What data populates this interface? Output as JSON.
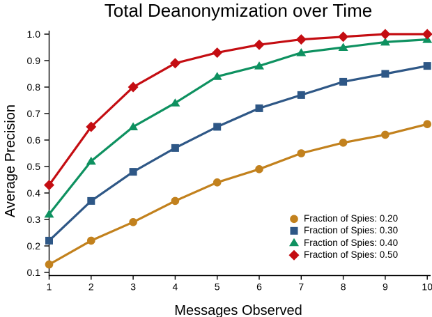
{
  "chart_data": {
    "type": "line",
    "title": "Total Deanonymization over Time",
    "xlabel": "Messages Observed",
    "ylabel": "Average Precision",
    "x": [
      1,
      2,
      3,
      4,
      5,
      6,
      7,
      8,
      9,
      10
    ],
    "x_tick_labels": [
      "1",
      "2",
      "3",
      "4",
      "5",
      "6",
      "7",
      "8",
      "9",
      "10"
    ],
    "y_tick_labels": [
      "0.1",
      "0.2",
      "0.3",
      "0.4",
      "0.5",
      "0.6",
      "0.7",
      "0.8",
      "0.9",
      "1.0"
    ],
    "xlim": [
      1,
      10
    ],
    "ylim": [
      0.1,
      1.0
    ],
    "grid": false,
    "legend_position": "lower right",
    "axis_color": "#000000",
    "background_color": "#ffffff",
    "series": [
      {
        "name": "Fraction of Spies: 0.20",
        "marker": "circle",
        "color": "#C2811D",
        "values": [
          0.13,
          0.22,
          0.29,
          0.37,
          0.44,
          0.49,
          0.55,
          0.59,
          0.62,
          0.66
        ]
      },
      {
        "name": "Fraction of Spies: 0.30",
        "marker": "square",
        "color": "#2E5786",
        "values": [
          0.22,
          0.37,
          0.48,
          0.57,
          0.65,
          0.72,
          0.77,
          0.82,
          0.85,
          0.88
        ]
      },
      {
        "name": "Fraction of Spies: 0.40",
        "marker": "triangle",
        "color": "#0E9160",
        "values": [
          0.32,
          0.52,
          0.65,
          0.74,
          0.84,
          0.88,
          0.93,
          0.95,
          0.97,
          0.98
        ]
      },
      {
        "name": "Fraction of Spies: 0.50",
        "marker": "diamond",
        "color": "#C40D12",
        "values": [
          0.43,
          0.65,
          0.8,
          0.89,
          0.93,
          0.96,
          0.98,
          0.99,
          1.0,
          1.0
        ]
      }
    ]
  }
}
